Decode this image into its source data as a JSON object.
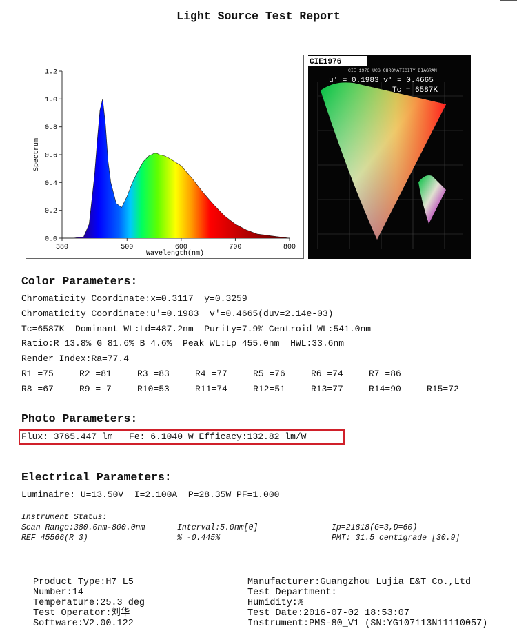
{
  "header": {
    "title": "Light Source Test Report"
  },
  "spectrum": {
    "type": "line",
    "xlabel": "Wavelength(nm)",
    "ylabel": "Spectrum",
    "x": [
      380,
      400,
      420,
      430,
      440,
      445,
      450,
      455,
      460,
      465,
      470,
      480,
      490,
      500,
      510,
      520,
      530,
      540,
      550,
      555,
      560,
      570,
      580,
      600,
      620,
      640,
      660,
      680,
      700,
      720,
      740,
      760,
      780,
      800
    ],
    "values": [
      0,
      0,
      0.01,
      0.1,
      0.45,
      0.7,
      0.92,
      1.0,
      0.82,
      0.55,
      0.4,
      0.25,
      0.22,
      0.3,
      0.4,
      0.48,
      0.55,
      0.59,
      0.61,
      0.61,
      0.6,
      0.59,
      0.57,
      0.52,
      0.43,
      0.33,
      0.24,
      0.16,
      0.1,
      0.06,
      0.03,
      0.02,
      0.01,
      0
    ],
    "xlim": [
      380,
      800
    ],
    "ylim": [
      0,
      1.2
    ],
    "xticks": [
      380,
      500,
      600,
      700,
      800
    ],
    "yticks": [
      {
        "value": 0,
        "label": "0.0"
      },
      {
        "value": 0.2,
        "label": "0.2"
      },
      {
        "value": 0.4,
        "label": "0.4"
      },
      {
        "value": 0.6,
        "label": "0.6"
      },
      {
        "value": 0.8,
        "label": "0.8"
      },
      {
        "value": 1.0,
        "label": "1.0"
      },
      {
        "value": 1.2,
        "label": "1.2"
      }
    ]
  },
  "cie": {
    "label": "CIE1976",
    "diagram_title": "CIE 1976 UCS CHROMATICITY DIAGRAM",
    "coords": "u' = 0.1983 v' = 0.4665",
    "tc": "Tc = 6587K"
  },
  "color_parameters": {
    "title": "Color Parameters:",
    "lines": [
      "Chromaticity Coordinate:x=0.3117  y=0.3259",
      "Chromaticity Coordinate:u'=0.1983  v'=0.4665(duv=2.14e-03)",
      "Tc=6587K  Dominant WL:Ld=487.2nm  Purity=7.9% Centroid WL:541.0nm",
      "Ratio:R=13.8% G=81.6% B=4.6%  Peak WL:Lp=455.0nm  HWL:33.6nm",
      "Render Index:Ra=77.4"
    ],
    "render_rows": [
      [
        "R1 =75",
        "R2 =81",
        "R3 =83",
        "R4 =77",
        "R5 =76",
        "R6 =74",
        "R7 =86"
      ],
      [
        "R8 =67",
        "R9 =-7",
        "R10=53",
        "R11=74",
        "R12=51",
        "R13=77",
        "R14=90",
        "R15=72"
      ]
    ]
  },
  "photo_parameters": {
    "title": "Photo Parameters:",
    "line": "Flux: 3765.447 lm   Fe: 6.1040 W Efficacy:132.82 lm/W"
  },
  "electrical_parameters": {
    "title": "Electrical Parameters:",
    "line": "Luminaire: U=13.50V  I=2.100A  P=28.35W PF=1.000"
  },
  "instrument_status": {
    "title": "Instrument Status:",
    "rows": [
      [
        "Scan Range:380.0nm-800.0nm",
        "Interval:5.0nm[0]",
        "Ip=21818(G=3,D=60)"
      ],
      [
        "REF=45566(R=3)",
        "%=-0.445%",
        "PMT: 31.5 centigrade [30.9]"
      ]
    ]
  },
  "footer": {
    "left": [
      "Product Type:H7 L5",
      "Number:14",
      "Temperature:25.3 deg",
      "Test Operator:刘华",
      "Software:V2.00.122"
    ],
    "right": [
      "Manufacturer:Guangzhou Lujia E&T Co.,Ltd",
      "Test Department:",
      "Humidity:%",
      "Test Date:2016-07-02 18:53:07",
      "Instrument:PMS-80_V1 (SN:YG107113N11110057)"
    ]
  }
}
